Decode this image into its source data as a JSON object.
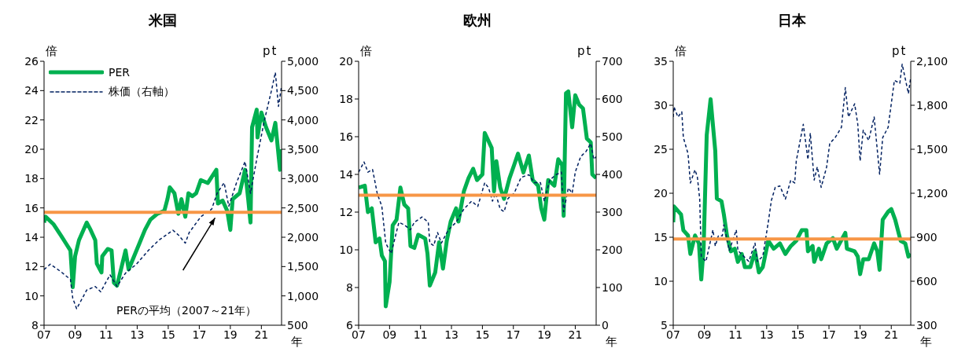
{
  "chart_data": [
    {
      "type": "line",
      "title": "米国",
      "ylabel": "倍",
      "y2label": "pt",
      "xlabel": "年",
      "legend": "top left",
      "grid": false,
      "xlim": [
        2007,
        2022.3
      ],
      "xticks": [
        {
          "value": 2007,
          "label": "07"
        },
        {
          "value": 2009,
          "label": "09"
        },
        {
          "value": 2011,
          "label": "11"
        },
        {
          "value": 2013,
          "label": "13"
        },
        {
          "value": 2015,
          "label": "15"
        },
        {
          "value": 2017,
          "label": "17"
        },
        {
          "value": 2019,
          "label": "19"
        },
        {
          "value": 2021,
          "label": "21"
        }
      ],
      "ylim": [
        8,
        26
      ],
      "yticks": [
        8,
        10,
        12,
        14,
        16,
        18,
        20,
        22,
        24,
        26
      ],
      "y2lim": [
        500,
        5000
      ],
      "y2ticks": [
        500,
        {
          "value": 1000,
          "label": "1,000"
        },
        {
          "value": 1500,
          "label": "1,500"
        },
        {
          "value": 2000,
          "label": "2,000"
        },
        {
          "value": 2500,
          "label": "2,500"
        },
        {
          "value": 3000,
          "label": "3,000"
        },
        {
          "value": 3500,
          "label": "3,500"
        },
        {
          "value": 4000,
          "label": "4,000"
        },
        {
          "value": 4500,
          "label": "4,500"
        },
        {
          "value": 5000,
          "label": "5,000"
        }
      ],
      "series": [
        {
          "name": "PER",
          "color": "#00b050",
          "line_style": "solid",
          "x": [
            2007.0,
            2007.1,
            2007.6,
            2008.1,
            2008.4,
            2008.7,
            2008.85,
            2009.0,
            2009.25,
            2009.75,
            2010.0,
            2010.3,
            2010.4,
            2010.7,
            2010.75,
            2011.1,
            2011.35,
            2011.5,
            2011.7,
            2012.0,
            2012.25,
            2012.45,
            2012.8,
            2013.15,
            2013.5,
            2013.85,
            2014.3,
            2014.75,
            2014.95,
            2015.1,
            2015.4,
            2015.65,
            2015.85,
            2016.1,
            2016.3,
            2016.55,
            2016.8,
            2017.1,
            2017.55,
            2018.1,
            2018.2,
            2018.5,
            2018.8,
            2019.0,
            2019.15,
            2019.6,
            2019.95,
            2020.15,
            2020.3,
            2020.4,
            2020.7,
            2020.75,
            2021.0,
            2021.3,
            2021.65,
            2021.9,
            2022.2,
            2022.3
          ],
          "values": [
            15.0,
            15.4,
            14.9,
            14.1,
            13.6,
            13.1,
            10.6,
            12.7,
            13.8,
            15.0,
            14.5,
            13.8,
            12.2,
            11.6,
            12.7,
            13.2,
            13.1,
            10.9,
            10.7,
            12.0,
            13.1,
            11.8,
            12.7,
            13.6,
            14.5,
            15.2,
            15.6,
            15.8,
            16.6,
            17.4,
            17.0,
            15.6,
            16.6,
            15.4,
            17.0,
            16.8,
            17.0,
            17.9,
            17.7,
            18.6,
            16.3,
            16.5,
            15.8,
            14.5,
            16.6,
            17.0,
            18.6,
            16.6,
            15.0,
            21.5,
            22.7,
            20.8,
            22.5,
            21.5,
            20.6,
            21.8,
            18.6,
            20.0
          ]
        },
        {
          "name": "株価（右軸）",
          "color": "#002060",
          "line_style": "dashed",
          "axis": "y2",
          "x": [
            2007.0,
            2007.4,
            2008.1,
            2008.7,
            2008.85,
            2009.1,
            2009.75,
            2010.3,
            2010.65,
            2011.25,
            2011.7,
            2012.25,
            2012.95,
            2013.7,
            2014.4,
            2015.3,
            2015.65,
            2016.1,
            2016.35,
            2017.1,
            2017.8,
            2018.15,
            2018.6,
            2018.9,
            2019.4,
            2019.95,
            2020.3,
            2020.7,
            2021.2,
            2021.65,
            2021.9,
            2022.1,
            2022.3
          ],
          "values": [
            1450,
            1540,
            1410,
            1280,
            960,
            780,
            1100,
            1160,
            1070,
            1360,
            1160,
            1390,
            1540,
            1770,
            1950,
            2120,
            2040,
            1900,
            2080,
            2350,
            2480,
            2750,
            2930,
            2530,
            2930,
            3290,
            2750,
            3330,
            4000,
            4500,
            4810,
            4230,
            4580
          ]
        }
      ],
      "annotations": [
        "PERの平均（2007～21年）"
      ],
      "ref_lines": [
        {
          "axis": "y",
          "value": 15.7,
          "color": "#f79646"
        }
      ]
    },
    {
      "type": "line",
      "title": "欧州",
      "ylabel": "倍",
      "y2label": "pt",
      "xlabel": "年",
      "grid": false,
      "xlim": [
        2007,
        2022.35
      ],
      "xticks": [
        {
          "value": 2007,
          "label": "07"
        },
        {
          "value": 2009,
          "label": "09"
        },
        {
          "value": 2011,
          "label": "11"
        },
        {
          "value": 2013,
          "label": "13"
        },
        {
          "value": 2015,
          "label": "15"
        },
        {
          "value": 2017,
          "label": "17"
        },
        {
          "value": 2019,
          "label": "19"
        },
        {
          "value": 2021,
          "label": "21"
        }
      ],
      "ylim": [
        6,
        20
      ],
      "yticks": [
        6,
        8,
        10,
        12,
        14,
        16,
        18,
        20
      ],
      "y2lim": [
        0,
        700
      ],
      "y2ticks": [
        0,
        100,
        200,
        300,
        400,
        500,
        600,
        700
      ],
      "series": [
        {
          "color": "#00b050",
          "line_style": "solid",
          "x": [
            2007.0,
            2007.4,
            2007.6,
            2007.85,
            2008.1,
            2008.35,
            2008.5,
            2008.7,
            2008.75,
            2009.0,
            2009.2,
            2009.45,
            2009.7,
            2009.95,
            2010.2,
            2010.35,
            2010.6,
            2010.85,
            2011.3,
            2011.45,
            2011.6,
            2011.95,
            2012.2,
            2012.45,
            2012.7,
            2012.95,
            2013.3,
            2013.45,
            2013.8,
            2014.1,
            2014.4,
            2014.65,
            2015.0,
            2015.15,
            2015.6,
            2015.75,
            2015.9,
            2016.15,
            2016.4,
            2016.75,
            2017.05,
            2017.3,
            2017.65,
            2018.0,
            2018.25,
            2018.6,
            2018.8,
            2019.0,
            2019.25,
            2019.65,
            2019.9,
            2020.15,
            2020.25,
            2020.4,
            2020.55,
            2020.8,
            2021.0,
            2021.25,
            2021.5,
            2021.75,
            2022.0,
            2022.1,
            2022.35
          ],
          "values": [
            13.3,
            13.4,
            12.0,
            12.2,
            10.4,
            10.6,
            9.7,
            9.4,
            7.0,
            8.3,
            11.3,
            11.6,
            13.3,
            12.4,
            12.2,
            10.2,
            10.1,
            10.8,
            10.6,
            9.8,
            8.1,
            8.8,
            10.4,
            9.0,
            10.5,
            11.5,
            12.2,
            11.5,
            13.1,
            13.8,
            14.3,
            13.7,
            14.0,
            16.2,
            15.4,
            13.1,
            14.7,
            13.3,
            12.7,
            13.8,
            14.5,
            15.1,
            14.1,
            15.0,
            13.7,
            13.4,
            12.2,
            11.6,
            13.7,
            13.4,
            14.8,
            14.5,
            11.8,
            18.3,
            18.4,
            16.5,
            18.2,
            17.7,
            17.5,
            15.9,
            15.7,
            14.0,
            13.8
          ]
        },
        {
          "color": "#002060",
          "line_style": "dashed",
          "axis": "y2",
          "x": [
            2007.0,
            2007.35,
            2007.6,
            2007.9,
            2008.2,
            2008.5,
            2008.75,
            2009.1,
            2009.6,
            2009.95,
            2010.35,
            2010.6,
            2011.1,
            2011.5,
            2011.6,
            2011.85,
            2012.1,
            2012.35,
            2012.8,
            2013.3,
            2013.8,
            2014.3,
            2014.7,
            2015.15,
            2015.4,
            2015.65,
            2015.85,
            2016.15,
            2016.4,
            2016.65,
            2017.05,
            2017.5,
            2018.0,
            2018.35,
            2018.75,
            2019.0,
            2019.35,
            2019.75,
            2020.1,
            2020.25,
            2020.55,
            2020.8,
            2021.0,
            2021.35,
            2021.7,
            2022.0,
            2022.2,
            2022.35
          ],
          "values": [
            406,
            433,
            406,
            413,
            350,
            315,
            218,
            190,
            273,
            266,
            253,
            273,
            287,
            273,
            218,
            211,
            246,
            218,
            253,
            273,
            308,
            329,
            315,
            378,
            364,
            329,
            350,
            308,
            301,
            336,
            350,
            392,
            399,
            378,
            378,
            329,
            385,
            399,
            406,
            301,
            364,
            350,
            406,
            447,
            461,
            482,
            440,
            447
          ]
        }
      ],
      "ref_lines": [
        {
          "axis": "y",
          "value": 12.9,
          "color": "#f79646"
        }
      ]
    },
    {
      "type": "line",
      "title": "日本",
      "ylabel": "倍",
      "y2label": "pt",
      "xlabel": "年",
      "grid": false,
      "xlim": [
        2007,
        2022.25
      ],
      "xticks": [
        {
          "value": 2007,
          "label": "07"
        },
        {
          "value": 2009,
          "label": "09"
        },
        {
          "value": 2011,
          "label": "11"
        },
        {
          "value": 2013,
          "label": "13"
        },
        {
          "value": 2015,
          "label": "15"
        },
        {
          "value": 2017,
          "label": "17"
        },
        {
          "value": 2019,
          "label": "19"
        },
        {
          "value": 2021,
          "label": "21"
        }
      ],
      "ylim": [
        5,
        35
      ],
      "yticks": [
        5,
        10,
        15,
        20,
        25,
        30,
        35
      ],
      "y2lim": [
        300,
        2100
      ],
      "y2ticks": [
        300,
        600,
        900,
        {
          "value": 1200,
          "label": "1,200"
        },
        {
          "value": 1500,
          "label": "1,500"
        },
        {
          "value": 1800,
          "label": "1,800"
        },
        {
          "value": 2100,
          "label": "2,100"
        }
      ],
      "series": [
        {
          "color": "#00b050",
          "line_style": "solid",
          "x": [
            2007.0,
            2007.05,
            2007.5,
            2007.65,
            2007.95,
            2008.1,
            2008.4,
            2008.65,
            2008.8,
            2008.95,
            2009.15,
            2009.4,
            2009.7,
            2009.8,
            2010.1,
            2010.25,
            2010.45,
            2010.7,
            2010.95,
            2011.15,
            2011.4,
            2011.6,
            2011.95,
            2012.25,
            2012.5,
            2012.75,
            2013.1,
            2013.45,
            2013.85,
            2014.2,
            2014.55,
            2014.9,
            2015.25,
            2015.55,
            2015.65,
            2015.95,
            2016.05,
            2016.35,
            2016.5,
            2016.85,
            2017.25,
            2017.5,
            2018.05,
            2018.15,
            2018.65,
            2018.85,
            2019.0,
            2019.2,
            2019.55,
            2019.9,
            2020.1,
            2020.25,
            2020.45,
            2020.8,
            2021.0,
            2021.25,
            2021.6,
            2021.9,
            2022.1,
            2022.25
          ],
          "values": [
            16.7,
            18.5,
            17.6,
            15.8,
            15.2,
            13.1,
            15.2,
            14.3,
            10.2,
            13.7,
            26.6,
            30.7,
            24.8,
            19.4,
            19.1,
            17.6,
            15.2,
            13.4,
            13.7,
            12.2,
            13.1,
            11.6,
            11.6,
            13.4,
            11.0,
            11.6,
            14.6,
            13.7,
            14.3,
            13.1,
            14.0,
            14.6,
            15.8,
            15.8,
            13.4,
            14.0,
            12.2,
            13.7,
            12.5,
            14.3,
            14.9,
            13.7,
            15.5,
            13.7,
            13.4,
            12.8,
            10.8,
            12.5,
            12.5,
            14.3,
            13.4,
            11.3,
            17.0,
            17.9,
            18.2,
            17.0,
            14.6,
            14.3,
            12.8,
            13.1
          ]
        },
        {
          "color": "#002060",
          "line_style": "dashed",
          "axis": "y2",
          "x": [
            2007.0,
            2007.05,
            2007.3,
            2007.55,
            2007.65,
            2007.95,
            2008.1,
            2008.4,
            2008.55,
            2008.7,
            2008.8,
            2009.1,
            2009.55,
            2009.7,
            2009.9,
            2010.15,
            2010.25,
            2010.6,
            2011.05,
            2011.15,
            2011.85,
            2012.25,
            2012.4,
            2012.75,
            2013.1,
            2013.3,
            2013.55,
            2013.85,
            2014.2,
            2014.55,
            2014.8,
            2014.9,
            2015.35,
            2015.65,
            2015.8,
            2016.05,
            2016.25,
            2016.5,
            2016.85,
            2017.05,
            2017.4,
            2017.8,
            2018.05,
            2018.25,
            2018.65,
            2018.85,
            2019.0,
            2019.2,
            2019.55,
            2019.9,
            2020.25,
            2020.45,
            2020.8,
            2021.2,
            2021.55,
            2021.7,
            2022.1,
            2022.25
          ],
          "values": [
            1720,
            1790,
            1720,
            1755,
            1580,
            1470,
            1270,
            1360,
            1310,
            1160,
            770,
            735,
            950,
            840,
            910,
            910,
            985,
            810,
            950,
            810,
            735,
            860,
            735,
            770,
            1000,
            1150,
            1240,
            1250,
            1160,
            1290,
            1270,
            1420,
            1670,
            1430,
            1610,
            1290,
            1380,
            1240,
            1380,
            1540,
            1580,
            1650,
            1920,
            1720,
            1810,
            1670,
            1420,
            1630,
            1560,
            1720,
            1330,
            1580,
            1650,
            1970,
            1950,
            2080,
            1880,
            1990
          ]
        }
      ],
      "ref_lines": [
        {
          "axis": "y",
          "value": 14.8,
          "color": "#f79646"
        }
      ]
    }
  ]
}
